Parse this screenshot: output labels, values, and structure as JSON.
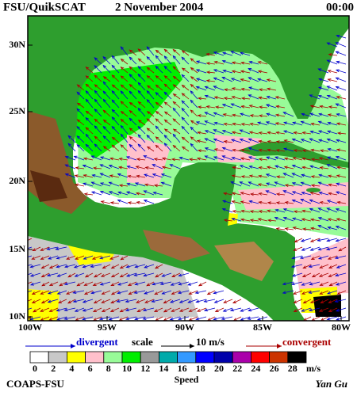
{
  "header": {
    "title": "FSU/QuikSCAT",
    "date": "2 November 2004",
    "time": "00:00"
  },
  "map": {
    "lat_labels": [
      "30N",
      "25N",
      "20N",
      "15N",
      "10N"
    ],
    "lon_labels": [
      "100W",
      "95W",
      "90W",
      "85W",
      "80W"
    ]
  },
  "legend": {
    "divergent": "divergent",
    "scale": "scale",
    "scale_value": "10 m/s",
    "convergent": "convergent"
  },
  "colorbar": {
    "ticks": [
      0,
      2,
      4,
      6,
      8,
      10,
      12,
      14,
      16,
      18,
      20,
      22,
      24,
      26,
      28
    ],
    "colors": [
      "#ffffff",
      "#c8c8c8",
      "#ffff00",
      "#ffc0cb",
      "#98fb98",
      "#00ee00",
      "#999999",
      "#00aaaa",
      "#3399ff",
      "#0000ff",
      "#0000aa",
      "#aa00aa",
      "#ff0000",
      "#cc3300",
      "#000000"
    ],
    "unit": "m/s",
    "label": "Speed"
  },
  "footer": {
    "left": "COAPS-FSU",
    "right": "Yan Gu"
  }
}
